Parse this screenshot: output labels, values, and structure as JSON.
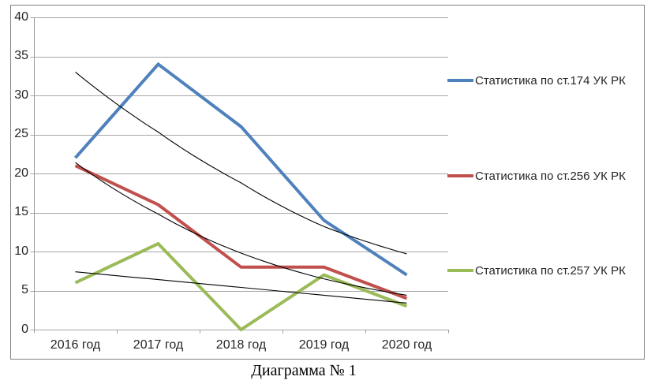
{
  "caption": "Диаграмма № 1",
  "chart_data": {
    "type": "line",
    "title": "",
    "categories": [
      "2016 год",
      "2017 год",
      "2018 год",
      "2019 год",
      "2020 год"
    ],
    "series": [
      {
        "name": "Статистика по ст.174 УК РК",
        "values": [
          22,
          34,
          26,
          14,
          7
        ],
        "color": "#4f81bd"
      },
      {
        "name": "Статистика по ст.256 УК РК",
        "values": [
          21,
          16,
          8,
          8,
          4
        ],
        "color": "#c0504d"
      },
      {
        "name": "Статистика по ст.257 УК РК",
        "values": [
          6,
          11,
          0,
          7,
          3
        ],
        "color": "#9bbb59"
      }
    ],
    "trendlines": [
      {
        "series": 0,
        "type": "exponential",
        "values": [
          33,
          25.3,
          18.8,
          13.2,
          9.7
        ]
      },
      {
        "series": 1,
        "type": "exponential",
        "values": [
          21.4,
          14.8,
          9.8,
          6.5,
          4.4
        ]
      },
      {
        "series": 2,
        "type": "linear",
        "values": [
          7.4,
          6.4,
          5.4,
          4.4,
          3.4
        ]
      }
    ],
    "y_axis": {
      "min": 0,
      "max": 40,
      "step": 5,
      "ticks": [
        "40",
        "35",
        "30",
        "25",
        "20",
        "15",
        "10",
        "5",
        "0"
      ]
    },
    "xlabel": "",
    "ylabel": "",
    "grid": true,
    "legend_position": "right",
    "style": {
      "gridline_color": "#a6a6a6",
      "axis_color": "#9b9b9b",
      "trendline_color": "#000000",
      "border_color": "#808080",
      "text_color": "#262626"
    }
  }
}
